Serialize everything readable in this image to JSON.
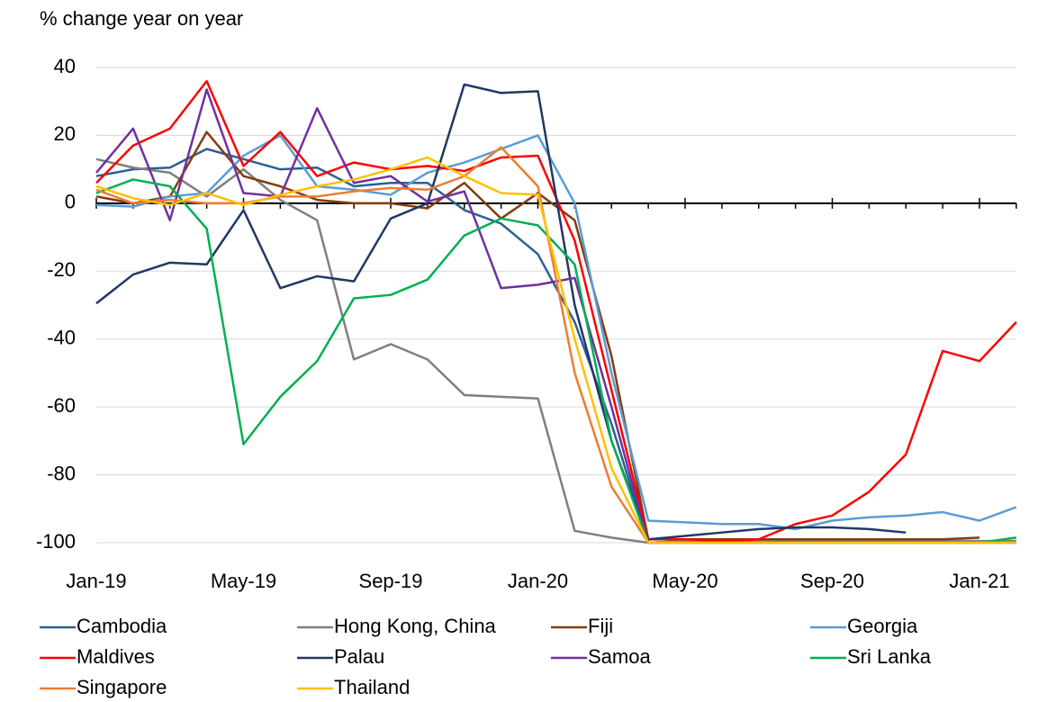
{
  "chart_data": {
    "type": "line",
    "y_label": "% change year on year",
    "categories": [
      "Jan-19",
      null,
      null,
      null,
      "May-19",
      null,
      null,
      null,
      "Sep-19",
      null,
      null,
      null,
      "Jan-20",
      null,
      null,
      null,
      "May-20",
      null,
      null,
      null,
      "Sep-20",
      null,
      null,
      null,
      "Jan-21",
      null
    ],
    "ylim": [
      -100,
      40
    ],
    "yticks": [
      -100,
      -80,
      -60,
      -40,
      -20,
      0,
      20,
      40
    ],
    "grid": true,
    "legend": "bottom",
    "series": [
      {
        "name": "Cambodia",
        "color": "#2e5f93",
        "values": [
          8,
          10,
          10.5,
          16,
          13,
          10,
          10.5,
          5,
          6,
          6,
          -2,
          -6,
          -15,
          -35,
          -65,
          -100,
          -99.5,
          -99.5,
          -99.5,
          -99.5,
          -99.5,
          -99.5,
          -99.5,
          -99.5,
          -99.5,
          null
        ]
      },
      {
        "name": "Hong Kong, China",
        "color": "#7f7f7f",
        "values": [
          13,
          10.5,
          9,
          2,
          10,
          1,
          -5,
          -46,
          -41.5,
          -46,
          -56.5,
          -57,
          -57.5,
          -96.5,
          -98.5,
          -100,
          -99.5,
          -99.5,
          -99.5,
          -99.5,
          -99.5,
          -99.5,
          -99.5,
          -99.5,
          -99.5,
          -99.5
        ]
      },
      {
        "name": "Fiji",
        "color": "#843c0c",
        "values": [
          2,
          0,
          2,
          21,
          8,
          5,
          1,
          0,
          0,
          -1.5,
          6,
          -4.5,
          3,
          -5,
          -45,
          -99,
          -99,
          -99,
          -99,
          -99,
          -99,
          -99,
          -99,
          -99,
          -98.5,
          null
        ]
      },
      {
        "name": "Georgia",
        "color": "#5b9bd5",
        "values": [
          -0.5,
          -1,
          2,
          3,
          14,
          20,
          5,
          4,
          2.5,
          9,
          12,
          16,
          20,
          0,
          -50,
          -93.5,
          -94,
          -94.5,
          -94.5,
          -96,
          -93.5,
          -92.5,
          -92,
          -91,
          -93.5,
          -89.5
        ]
      },
      {
        "name": "Maldives",
        "color": "#ff0000",
        "values": [
          6,
          17,
          22,
          36,
          11,
          21,
          8,
          12,
          10,
          11,
          9.5,
          13.5,
          14,
          -11,
          -55,
          -99,
          -99,
          -99.5,
          -99,
          -94.5,
          -92,
          -85,
          -74,
          -43.5,
          -46.5,
          -35
        ]
      },
      {
        "name": "Palau",
        "color": "#203864",
        "values": [
          -29.5,
          -21,
          -17.5,
          -18,
          -2,
          -25,
          -21.5,
          -23,
          -4.5,
          0,
          35,
          32.5,
          33,
          -30,
          -70,
          -99,
          -98,
          -97,
          -96,
          -95.5,
          -95.5,
          -96,
          -97,
          null,
          null,
          null
        ]
      },
      {
        "name": "Samoa",
        "color": "#7030a0",
        "values": [
          9,
          22,
          -5,
          33.5,
          3,
          2,
          28,
          6,
          8,
          0.5,
          3.5,
          -25,
          -24,
          -22,
          -60,
          -100,
          -100,
          -100,
          -100,
          -100,
          -100,
          -100,
          -100,
          -100,
          -100,
          -100
        ]
      },
      {
        "name": "Sri Lanka",
        "color": "#00b050",
        "values": [
          3,
          7,
          5,
          -7.5,
          -71,
          -57,
          -46.5,
          -28,
          -27,
          -22.5,
          -9.5,
          -4.5,
          -6.5,
          -18,
          -70,
          -100,
          -100,
          -100,
          -100,
          -100,
          -100,
          -100,
          -100,
          -100,
          -100,
          -98.5
        ]
      },
      {
        "name": "Singapore",
        "color": "#ed7d31",
        "values": [
          4,
          0,
          1,
          0,
          0,
          2,
          2,
          3.5,
          4.5,
          4,
          8,
          16.5,
          5,
          -50,
          -83.5,
          -100,
          -100,
          -100,
          -100,
          -100,
          -100,
          -100,
          -100,
          -100,
          -100,
          -100
        ]
      },
      {
        "name": "Thailand",
        "color": "#ffc000",
        "values": [
          5,
          1.5,
          -0.5,
          3,
          -0.5,
          2.5,
          5,
          7,
          10,
          13.5,
          8,
          3,
          2.5,
          -40,
          -78,
          -100,
          -100,
          -100,
          -100,
          -100,
          -100,
          -100,
          -100,
          -100,
          -100,
          -100
        ]
      }
    ]
  }
}
